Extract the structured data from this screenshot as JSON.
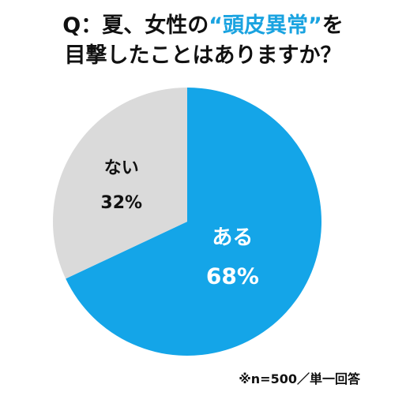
{
  "title": {
    "line1_prefix": "Q：夏、女性の",
    "line1_highlight": "“頭皮異常”",
    "line1_suffix": "を",
    "line2": "目撃したことはありますか？"
  },
  "chart_data": {
    "type": "pie",
    "start_angle_deg": 0,
    "direction": "clockwise",
    "slices": [
      {
        "label": "ある",
        "value": 68,
        "value_text": "68%",
        "color": "#14a5e8",
        "text_color": "#ffffff"
      },
      {
        "label": "ない",
        "value": 32,
        "value_text": "32%",
        "color": "#dadada",
        "text_color": "#111111"
      }
    ]
  },
  "footnote": "※n=500／単一回答"
}
